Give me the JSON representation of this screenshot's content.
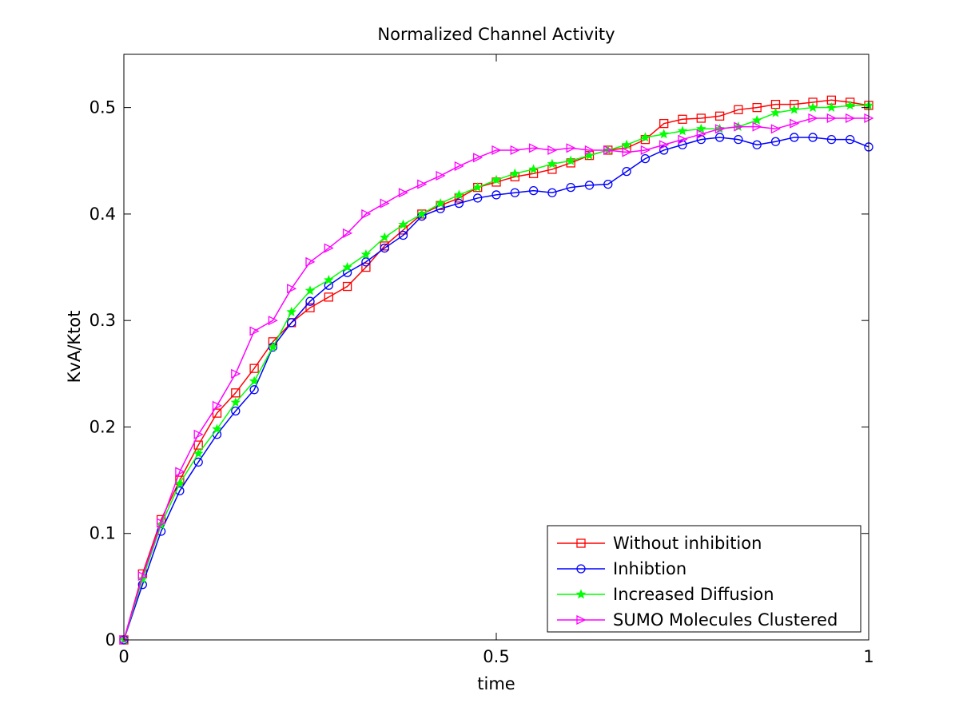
{
  "chart_data": {
    "type": "line",
    "title": "Normalized Channel Activity",
    "xlabel": "time",
    "ylabel": "KvA/Ktot",
    "xlim": [
      0,
      1
    ],
    "ylim": [
      0,
      0.55
    ],
    "xticks": [
      0,
      0.5,
      1
    ],
    "xtick_labels": [
      "0",
      "0.5",
      "1"
    ],
    "yticks": [
      0,
      0.1,
      0.2,
      0.3,
      0.4,
      0.5
    ],
    "ytick_labels": [
      "0",
      "0.1",
      "0.2",
      "0.3",
      "0.4",
      "0.5"
    ],
    "grid": false,
    "legend_position": "bottom-right",
    "x": [
      0,
      0.025,
      0.05,
      0.075,
      0.1,
      0.125,
      0.15,
      0.175,
      0.2,
      0.225,
      0.25,
      0.275,
      0.3,
      0.325,
      0.35,
      0.375,
      0.4,
      0.425,
      0.45,
      0.475,
      0.5,
      0.525,
      0.55,
      0.575,
      0.6,
      0.625,
      0.65,
      0.675,
      0.7,
      0.725,
      0.75,
      0.775,
      0.8,
      0.825,
      0.85,
      0.875,
      0.9,
      0.925,
      0.95,
      0.975,
      1.0
    ],
    "series": [
      {
        "name": "Without inhibition",
        "color": "#ff0000",
        "marker": "square",
        "values": [
          0,
          0.062,
          0.113,
          0.15,
          0.183,
          0.213,
          0.232,
          0.255,
          0.28,
          0.298,
          0.312,
          0.322,
          0.332,
          0.35,
          0.37,
          0.385,
          0.4,
          0.408,
          0.415,
          0.425,
          0.43,
          0.435,
          0.438,
          0.442,
          0.448,
          0.455,
          0.46,
          0.462,
          0.47,
          0.485,
          0.489,
          0.49,
          0.492,
          0.498,
          0.5,
          0.503,
          0.503,
          0.505,
          0.507,
          0.505,
          0.502
        ]
      },
      {
        "name": "Inhibtion",
        "color": "#0000ff",
        "marker": "circle",
        "values": [
          0,
          0.052,
          0.102,
          0.14,
          0.167,
          0.193,
          0.215,
          0.235,
          0.275,
          0.298,
          0.318,
          0.333,
          0.345,
          0.355,
          0.368,
          0.38,
          0.398,
          0.405,
          0.41,
          0.415,
          0.418,
          0.42,
          0.422,
          0.42,
          0.425,
          0.427,
          0.428,
          0.44,
          0.452,
          0.46,
          0.465,
          0.47,
          0.472,
          0.47,
          0.465,
          0.468,
          0.472,
          0.472,
          0.47,
          0.47,
          0.463
        ]
      },
      {
        "name": "Increased Diffusion",
        "color": "#00ff00",
        "marker": "star",
        "values": [
          0,
          0.057,
          0.108,
          0.147,
          0.175,
          0.198,
          0.223,
          0.243,
          0.275,
          0.308,
          0.328,
          0.338,
          0.35,
          0.362,
          0.378,
          0.39,
          0.4,
          0.41,
          0.418,
          0.425,
          0.432,
          0.438,
          0.442,
          0.447,
          0.45,
          0.455,
          0.46,
          0.465,
          0.472,
          0.475,
          0.478,
          0.48,
          0.48,
          0.482,
          0.488,
          0.495,
          0.498,
          0.5,
          0.5,
          0.502,
          0.502
        ]
      },
      {
        "name": "SUMO Molecules Clustered",
        "color": "#ff00ff",
        "marker": "triangle-right",
        "values": [
          0,
          0.06,
          0.11,
          0.158,
          0.193,
          0.22,
          0.25,
          0.29,
          0.3,
          0.33,
          0.355,
          0.368,
          0.382,
          0.4,
          0.41,
          0.42,
          0.428,
          0.436,
          0.445,
          0.453,
          0.46,
          0.46,
          0.462,
          0.46,
          0.462,
          0.46,
          0.46,
          0.458,
          0.46,
          0.465,
          0.47,
          0.475,
          0.48,
          0.482,
          0.482,
          0.48,
          0.485,
          0.49,
          0.49,
          0.49,
          0.49
        ]
      }
    ]
  }
}
